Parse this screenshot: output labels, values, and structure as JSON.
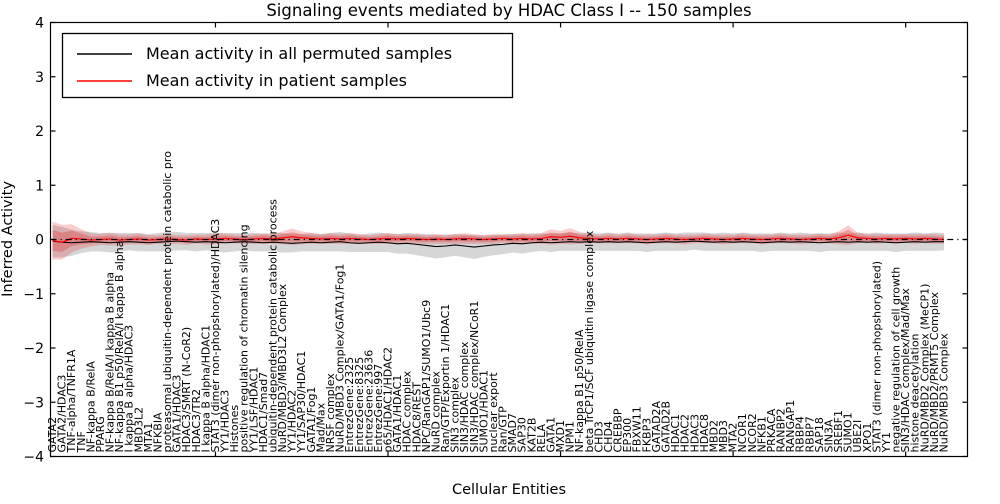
{
  "title": "Signaling events mediated by HDAC Class I -- 150 samples",
  "legend": [
    {
      "label": "Mean activity in all permuted samples",
      "color": "#000000"
    },
    {
      "label": "Mean activity in patient samples",
      "color": "#ff0000"
    }
  ],
  "colors": {
    "permuted_line": "#000000",
    "patient_line": "#ff0000",
    "permuted_band": "rgba(0,0,0,0.16)",
    "patient_band_outer": "rgba(228,26,28,0.22)",
    "patient_band_inner": "rgba(228,26,28,0.28)",
    "zero_line": "#000000",
    "axis": "#000000"
  },
  "chart_data": {
    "type": "line",
    "title": "Signaling events mediated by HDAC Class I -- 150 samples",
    "xlabel": "Cellular Entities",
    "ylabel": "Inferred Activity",
    "ylim": [
      -4,
      4
    ],
    "ytick_values": [
      4,
      3,
      2,
      1,
      0,
      -1,
      -2,
      -3,
      -4
    ],
    "ytick_labels": [
      "4",
      "3",
      "2",
      "1",
      "0",
      "−1",
      "−2",
      "−3",
      "−4"
    ],
    "grid": false,
    "legend_position": "upper left",
    "zero_line_style": "dash-dot",
    "categories": [
      "GATA2",
      "GATA2/HDAC3",
      "TNF-alpha/TNFR1A",
      "TNF",
      "NF-kappa B/RelA",
      "PPARG",
      "NF-kappa B/RelA/I kappa B alpha",
      "NF-kappa B1 p50/RelA/I kappa B alpha",
      "I kappa B alpha/HDAC3",
      "MBD3L2",
      "MTA1",
      "NFKBIA",
      "proteasomal ubiquitin-dependent protein catabolic pro",
      "GATA1/HDAC3",
      "HDAC3/SMRT (N-CoR2)",
      "HDAC3/TR2",
      "I kappa B alpha/HDAC1",
      "STAT3 (dimer non-phopshorylated)/HDAC3",
      "YY1/HDAC3",
      "Histones",
      "positive regulation of chromatin silencing",
      "YY1/LSF/HDAC1",
      "HDAC1/Smad7",
      "ubiquitin-dependent protein catabolic process",
      "NuRD/MBD3/MBD3L2 Complex",
      "YY1/HDAC2",
      "YY1/SAP30/HDAC1",
      "GATA1/Fog1",
      "Mad/Max",
      "NRSF complex",
      "NuRD/MBD3 Complex/GATA1/Fog1",
      "EntrezGene:2325",
      "EntrezGene:8325",
      "EntrezGene:23636",
      "EntrezGene:997",
      "p65/HDAC1/HDAC2",
      "GATA1/HDAC1",
      "HDAC complex",
      "HDAC8/REST",
      "NPC/RanGAP1/SUMO1/Ubc9",
      "NuRD complex",
      "Ran/GTP/Exportin 1/HDAC1",
      "SIN3 complex",
      "SIN3/HDAC complex",
      "SIN3/HDAC complex/NCoR1",
      "SUMO1/HDAC1",
      "nuclear export",
      "Ran/GTP",
      "SMAD7",
      "SAP30",
      "KAT2B",
      "RELA",
      "GATA1",
      "MXD1",
      "NPM1",
      "NF-kappa B1 p50/RelA",
      "beta TrCP1/SCF ubiquitin ligase complex",
      "CHD3",
      "CHD4",
      "CREBBP",
      "EP300",
      "FBXW11",
      "FKBP3",
      "GATAD2A",
      "GATAD2B",
      "HDAC1",
      "HDAC2",
      "HDAC3",
      "HDAC8",
      "MBD2",
      "MBD3",
      "MTA2",
      "NCOR1",
      "NCOR2",
      "NFKB1",
      "PRKACA",
      "RANBP2",
      "RANGAP1",
      "RBBP4",
      "RBBP7",
      "SAP18",
      "SIN3A",
      "SREBF1",
      "SUMO1",
      "UBE2I",
      "XPO1",
      "STAT3 (dimer non-phopshorylated)",
      "YY1",
      "negative regulation of cell growth",
      "SIN3/HDAC complex/Mad/Max",
      "histone deacetylation",
      "NuRD/MBD2 Complex (MeCP1)",
      "NuRD/MBD2/PRMT5 Complex",
      "NuRD/MBD3 Complex"
    ],
    "series": [
      {
        "name": "Mean activity in all permuted samples",
        "color": "#000000",
        "values": [
          -0.03,
          -0.05,
          -0.06,
          -0.05,
          -0.04,
          -0.05,
          -0.06,
          -0.05,
          -0.04,
          -0.05,
          -0.06,
          -0.05,
          -0.04,
          -0.03,
          -0.04,
          -0.05,
          -0.04,
          -0.05,
          -0.06,
          -0.05,
          -0.04,
          -0.05,
          -0.06,
          -0.05,
          -0.06,
          -0.07,
          -0.06,
          -0.05,
          -0.06,
          -0.05,
          -0.04,
          -0.06,
          -0.07,
          -0.06,
          -0.05,
          -0.06,
          -0.08,
          -0.07,
          -0.09,
          -0.11,
          -0.13,
          -0.12,
          -0.1,
          -0.12,
          -0.14,
          -0.12,
          -0.1,
          -0.09,
          -0.07,
          -0.08,
          -0.06,
          -0.05,
          -0.06,
          -0.05,
          -0.04,
          -0.05,
          -0.04,
          -0.05,
          -0.04,
          -0.05,
          -0.04,
          -0.05,
          -0.06,
          -0.05,
          -0.04,
          -0.05,
          -0.04,
          -0.03,
          -0.04,
          -0.05,
          -0.04,
          -0.05,
          -0.04,
          -0.05,
          -0.06,
          -0.05,
          -0.04,
          -0.05,
          -0.04,
          -0.05,
          -0.06,
          -0.05,
          -0.04,
          -0.05,
          -0.04,
          -0.05,
          -0.04,
          -0.05,
          -0.06,
          -0.05,
          -0.04,
          -0.05,
          -0.04,
          -0.04
        ]
      },
      {
        "name": "Mean activity in patient samples",
        "color": "#ff0000",
        "values": [
          -0.02,
          -0.05,
          0.02,
          0.01,
          -0.01,
          0.0,
          0.01,
          -0.01,
          0.0,
          0.01,
          -0.01,
          0.0,
          0.01,
          0.0,
          -0.01,
          0.01,
          0.0,
          0.01,
          0.02,
          0.01,
          0.0,
          0.01,
          0.02,
          0.01,
          0.03,
          0.05,
          0.03,
          0.02,
          0.01,
          0.02,
          0.01,
          0.02,
          0.01,
          0.0,
          0.01,
          0.02,
          0.01,
          0.02,
          0.01,
          0.0,
          0.01,
          0.0,
          0.01,
          0.02,
          0.01,
          0.0,
          0.01,
          0.02,
          0.01,
          0.02,
          0.01,
          0.02,
          0.05,
          0.04,
          0.06,
          0.03,
          0.02,
          0.01,
          0.02,
          0.01,
          0.02,
          0.01,
          0.0,
          0.01,
          0.02,
          0.01,
          0.0,
          0.01,
          0.02,
          0.01,
          0.0,
          0.01,
          0.02,
          0.01,
          0.0,
          0.01,
          0.02,
          0.01,
          0.0,
          0.01,
          0.02,
          0.01,
          0.03,
          0.08,
          0.03,
          0.02,
          0.01,
          0.02,
          0.01,
          0.02,
          0.01,
          0.02,
          0.01,
          0.0
        ]
      }
    ],
    "bands": [
      {
        "name": "permuted samples spread",
        "around_series": 0,
        "half_widths": [
          0.3,
          0.28,
          0.24,
          0.2,
          0.18,
          0.17,
          0.18,
          0.17,
          0.16,
          0.17,
          0.16,
          0.17,
          0.18,
          0.17,
          0.16,
          0.17,
          0.16,
          0.17,
          0.18,
          0.17,
          0.16,
          0.17,
          0.16,
          0.17,
          0.18,
          0.17,
          0.16,
          0.17,
          0.16,
          0.17,
          0.18,
          0.17,
          0.16,
          0.17,
          0.18,
          0.17,
          0.18,
          0.19,
          0.2,
          0.21,
          0.22,
          0.21,
          0.2,
          0.21,
          0.22,
          0.2,
          0.19,
          0.18,
          0.17,
          0.18,
          0.17,
          0.16,
          0.17,
          0.16,
          0.17,
          0.16,
          0.17,
          0.16,
          0.17,
          0.16,
          0.17,
          0.16,
          0.17,
          0.16,
          0.17,
          0.16,
          0.17,
          0.16,
          0.17,
          0.16,
          0.17,
          0.16,
          0.17,
          0.16,
          0.17,
          0.16,
          0.17,
          0.16,
          0.17,
          0.16,
          0.17,
          0.16,
          0.17,
          0.16,
          0.17,
          0.16,
          0.17,
          0.16,
          0.17,
          0.16,
          0.17,
          0.16,
          0.17,
          0.16
        ]
      },
      {
        "name": "patient samples spread",
        "around_series": 1,
        "half_widths": [
          0.35,
          0.32,
          0.26,
          0.18,
          0.12,
          0.1,
          0.12,
          0.1,
          0.09,
          0.1,
          0.09,
          0.08,
          0.09,
          0.08,
          0.09,
          0.08,
          0.09,
          0.1,
          0.09,
          0.08,
          0.08,
          0.09,
          0.1,
          0.09,
          0.12,
          0.15,
          0.12,
          0.1,
          0.09,
          0.1,
          0.09,
          0.1,
          0.09,
          0.08,
          0.09,
          0.1,
          0.09,
          0.08,
          0.09,
          0.08,
          0.09,
          0.08,
          0.09,
          0.1,
          0.09,
          0.08,
          0.09,
          0.08,
          0.09,
          0.1,
          0.09,
          0.1,
          0.14,
          0.12,
          0.15,
          0.11,
          0.09,
          0.08,
          0.09,
          0.08,
          0.09,
          0.08,
          0.09,
          0.08,
          0.09,
          0.08,
          0.09,
          0.08,
          0.09,
          0.08,
          0.09,
          0.08,
          0.09,
          0.08,
          0.09,
          0.08,
          0.09,
          0.08,
          0.09,
          0.08,
          0.09,
          0.08,
          0.12,
          0.18,
          0.1,
          0.08,
          0.09,
          0.08,
          0.09,
          0.08,
          0.09,
          0.08,
          0.09,
          0.08
        ]
      }
    ]
  }
}
